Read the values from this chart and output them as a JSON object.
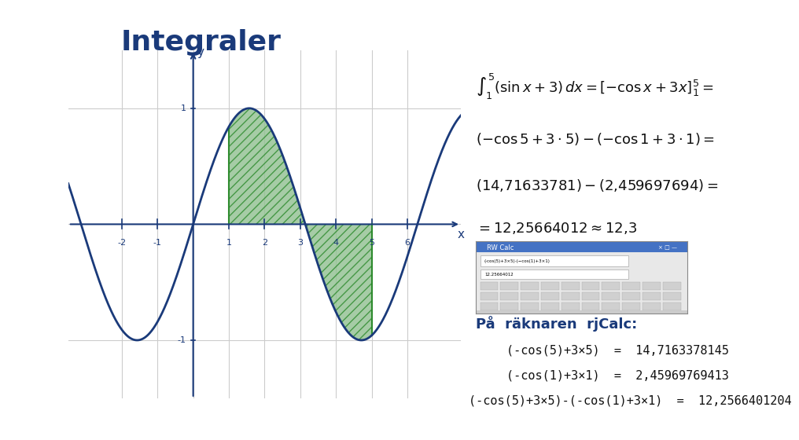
{
  "title": "Integraler",
  "bg_color": "#ffffff",
  "left_bar_color": "#2E5EA8",
  "title_color": "#1a3a7a",
  "pi_box_color": "#2E5EA8",
  "graph_line_color": "#1a3a7a",
  "fill_color": "#90c090",
  "fill_hatch_color": "#2E8B2E",
  "formula_line1": "$\\int_1^5 (\\sin x + 3)\\,dx = [-\\cos x + 3x]_1^5 =$",
  "formula_line2": "$(-\\cos 5 + 3 \\cdot 5) - (-\\cos 1 + 3 \\cdot 1) =$",
  "formula_line3": "$(14{,}71633781) - (2{,}459697694) =$",
  "formula_line4": "$= 12{,}25664012 \\approx 12{,}3$",
  "calc_header": "På  räknaren  rjCalc:",
  "calc_line1": "(-cos(5)+3×5)  =  14,7163378145",
  "calc_line2": "(-cos(1)+3×1)  =  2,45969769413",
  "calc_line3": "(-cos(5)+3×5)-(-cos(1)+3×1)  =  12,2566401204",
  "xmin": -3.5,
  "xmax": 7.5,
  "ymin": -1.5,
  "ymax": 1.5,
  "fill_start": 1,
  "fill_end": 5
}
